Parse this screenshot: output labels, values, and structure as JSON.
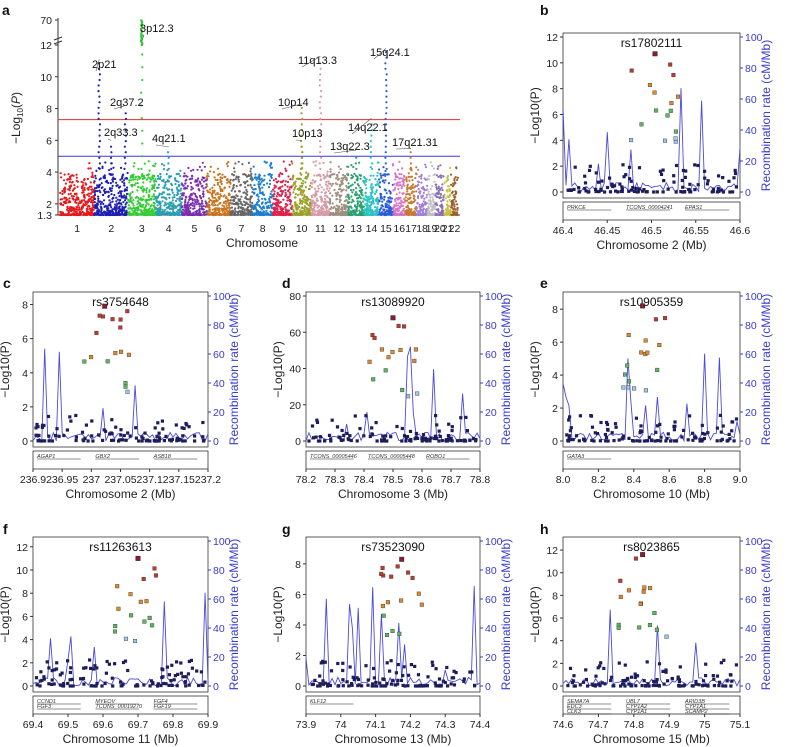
{
  "figure": {
    "manhattan": {
      "panel": "a",
      "xlabel": "Chromosome",
      "ylabel": "−Log10(P)",
      "yticks": [
        "1.3",
        "2",
        "4",
        "6",
        "8",
        "10",
        "12",
        "70"
      ],
      "chromosomes": [
        "1",
        "2",
        "3",
        "4",
        "5",
        "6",
        "7",
        "8",
        "9",
        "10",
        "11",
        "12",
        "13",
        "14",
        "15",
        "16",
        "17",
        "18",
        "19",
        "20",
        "21",
        "22"
      ],
      "colors": [
        "#e41a1c",
        "#1f1fb4",
        "#33cc33",
        "#2b9fb0",
        "#7b2fb0",
        "#c8741e",
        "#666666",
        "#1b7fd0",
        "#e0204c",
        "#9aa128",
        "#d899a8",
        "#9f8f7f",
        "#2aa070",
        "#29c3c3",
        "#2b5fd8",
        "#d874c8",
        "#c87a30",
        "#a07fd8",
        "#c0c0c0",
        "#8a6fb8",
        "#c8c03a",
        "#9a5f2f"
      ],
      "red_line": 7.3,
      "blue_line": 5.0,
      "loci": [
        {
          "label": "3p12.3",
          "chrom": 3,
          "y": 13.0
        },
        {
          "label": "2p21",
          "chrom": 2,
          "y": 10.9
        },
        {
          "label": "2q37.2",
          "chrom": 2,
          "y": 8.0
        },
        {
          "label": "2q33.3",
          "chrom": 2,
          "y": 5.8
        },
        {
          "label": "4q21.1",
          "chrom": 4,
          "y": 5.4
        },
        {
          "label": "11q13.3",
          "chrom": 11,
          "y": 11.1
        },
        {
          "label": "15q24.1",
          "chrom": 15,
          "y": 11.6
        },
        {
          "label": "10p14",
          "chrom": 10,
          "y": 8.1
        },
        {
          "label": "10p13",
          "chrom": 10,
          "y": 5.8
        },
        {
          "label": "14q22.1",
          "chrom": 14,
          "y": 7.2
        },
        {
          "label": "13q22.3",
          "chrom": 13,
          "y": 5.2
        },
        {
          "label": "17q21.31",
          "chrom": 17,
          "y": 5.3
        }
      ]
    },
    "regional_common": {
      "ylabel": "−Log10(P)",
      "ylabel_right": "Recombination rate (cM/Mb)",
      "rticks": [
        "0",
        "20",
        "40",
        "60",
        "80",
        "100"
      ]
    },
    "regional": [
      {
        "panel": "b",
        "snp": "rs17802111",
        "xlabel": "Chromosome 2 (Mb)",
        "xticks": [
          "46.4",
          "46.45",
          "46.5",
          "46.55",
          "46.6"
        ],
        "yticks": [
          "0",
          "2",
          "4",
          "6",
          "8",
          "10",
          "12"
        ],
        "ymax": 12,
        "genes": [
          "PRKCE",
          "TCONS_00004241",
          "EPAS1"
        ],
        "lead_x": 0.52,
        "lead_y": 10.7
      },
      {
        "panel": "c",
        "snp": "rs3754648",
        "xlabel": "Chromosome 2 (Mb)",
        "xticks": [
          "236.9",
          "236.95",
          "237",
          "237.05",
          "237.1",
          "237.15",
          "237.2"
        ],
        "yticks": [
          "0",
          "2",
          "4",
          "6",
          "8"
        ],
        "ymax": 8.5,
        "genes": [
          "AGAP1",
          "GBX2",
          "ASB18"
        ],
        "lead_x": 0.41,
        "lead_y": 7.9
      },
      {
        "panel": "d",
        "snp": "rs13089920",
        "xlabel": "Chromosome 3 (Mb)",
        "xticks": [
          "78.2",
          "78.3",
          "78.4",
          "78.5",
          "78.6",
          "78.7",
          "78.8"
        ],
        "yticks": [
          "0",
          "20",
          "40",
          "60",
          "80"
        ],
        "ymax": 80,
        "genes": [
          "TCONS_00005446",
          "TCONS_00005448",
          "ROBO1"
        ],
        "lead_x": 0.5,
        "lead_y": 68
      },
      {
        "panel": "e",
        "snp": "rs10905359",
        "xlabel": "Chromosome 10 (Mb)",
        "xticks": [
          "8.0",
          "8.2",
          "8.4",
          "8.6",
          "8.8",
          "9.0"
        ],
        "yticks": [
          "0",
          "2",
          "4",
          "6",
          "8"
        ],
        "ymax": 8.8,
        "genes": [
          "GATA3"
        ],
        "lead_x": 0.45,
        "lead_y": 8.2
      },
      {
        "panel": "f",
        "snp": "rs11263613",
        "xlabel": "Chromosome 11 (Mb)",
        "xticks": [
          "69.4",
          "69.5",
          "69.6",
          "69.7",
          "69.8",
          "69.9"
        ],
        "yticks": [
          "0",
          "2",
          "4",
          "6",
          "8",
          "10",
          "12"
        ],
        "ymax": 12.5,
        "genes": [
          "CCND1",
          "MYEOV",
          "FGF4",
          "FGF3",
          "TCONS_00019270",
          "FGF19"
        ],
        "lead_x": 0.6,
        "lead_y": 11.0
      },
      {
        "panel": "g",
        "snp": "rs73523090",
        "xlabel": "Chromosome 13 (Mb)",
        "xticks": [
          "73.9",
          "74",
          "74.1",
          "74.2",
          "74.3",
          "74.4"
        ],
        "yticks": [
          "0",
          "2",
          "4",
          "6",
          "8"
        ],
        "ymax": 9.5,
        "genes": [
          "KLF12"
        ],
        "lead_x": 0.55,
        "lead_y": 8.3
      },
      {
        "panel": "h",
        "snp": "rs8023865",
        "xlabel": "Chromosome 15 (Mb)",
        "xticks": [
          "74.6",
          "74.7",
          "74.8",
          "74.9",
          "75",
          "75.1"
        ],
        "yticks": [
          "0",
          "2",
          "4",
          "6",
          "8",
          "10",
          "12"
        ],
        "ymax": 12.8,
        "genes": [
          "SEMA7A",
          "UBL7",
          "ARID3B",
          "EDC3",
          "CYP1A2",
          "CYP1A1",
          "CLK3",
          "CYP1A1",
          "SCAMP2"
        ],
        "lead_x": 0.45,
        "lead_y": 11.6
      }
    ]
  }
}
